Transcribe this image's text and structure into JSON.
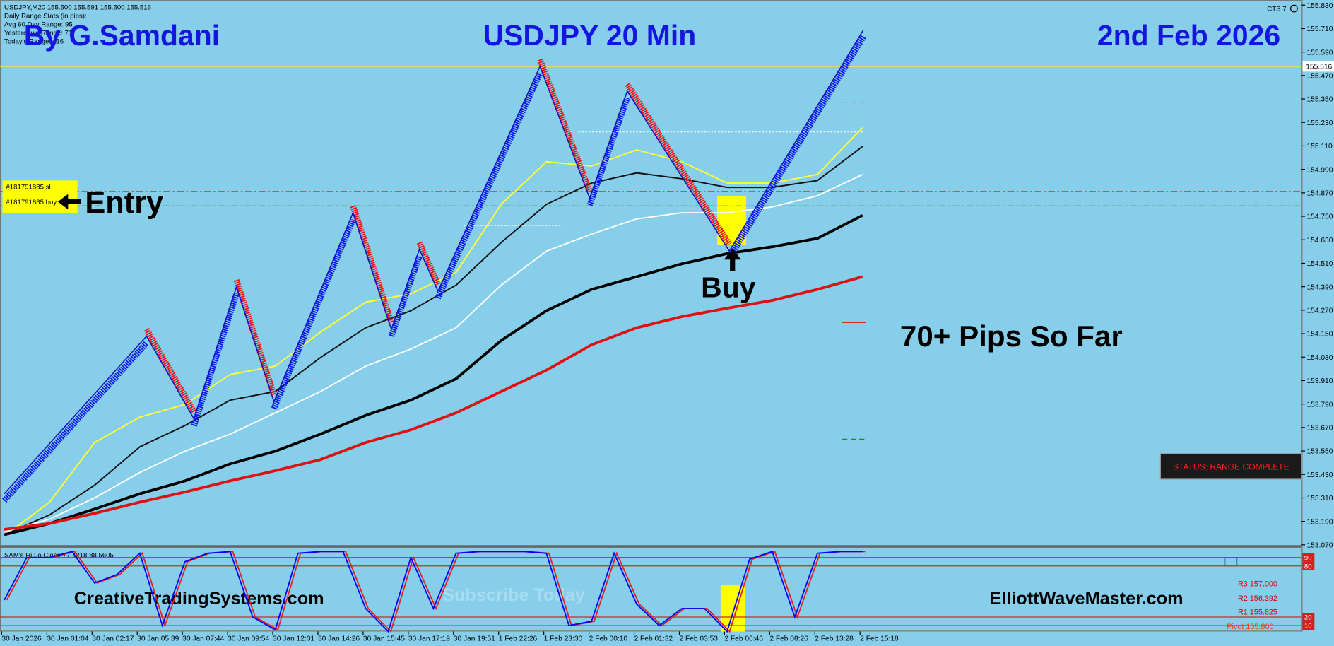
{
  "header": {
    "symbol_info": "USDJPY,M20  155.500 155.591 155.500 155.516",
    "stats": [
      "Daily Range Stats (in pips):",
      "Avg 60 Day Range: 95",
      "Yesterday's Range: 71",
      "Today's Range: 116"
    ],
    "author": "By G.Samdani",
    "title": "USDJPY 20 Min",
    "date": "2nd Feb 2026",
    "version": "CTS 7"
  },
  "annotations": {
    "entry": "Entry",
    "buy": "Buy",
    "pips": "70+ Pips So Far",
    "status": "STATUS: RANGE COMPLETE",
    "site_left": "CreativeTradingSystems.com",
    "subscribe": "Subscribe Today",
    "site_right": "ElliottWaveMaster.com",
    "pivot_labels": [
      "R3 157.000",
      "R2 156.392",
      "R1 155.825",
      "Pivot 155.800"
    ]
  },
  "chart_data": [
    {
      "type": "line",
      "categories": [
        "30 Jan 2026",
        "30 Jan 01:04",
        "30 Jan 02:17",
        "30 Jan 05:39",
        "30 Jan 07:44",
        "30 Jan 09:54",
        "30 Jan 12:01",
        "30 Jan 14:26",
        "30 Jan 15:45",
        "30 Jan 17:19",
        "30 Jan 19:51",
        "1 Feb 22:26",
        "1 Feb 23:30",
        "2 Feb 00:10",
        "2 Feb 01:32",
        "2 Feb 03:53",
        "2 Feb 06:46",
        "2 Feb 08:26",
        "2 Feb 13:28",
        "2 Feb 15:18"
      ],
      "ylim": [
        153.062,
        155.856
      ],
      "yticks": [
        {
          "value": 155.83,
          "label": "155.830"
        },
        {
          "value": 155.71,
          "label": "155.710"
        },
        {
          "value": 155.59,
          "label": "155.590"
        },
        {
          "value": 155.47,
          "label": "155.470"
        },
        {
          "value": 155.35,
          "label": "155.350"
        },
        {
          "value": 155.23,
          "label": "155.230"
        },
        {
          "value": 155.11,
          "label": "155.110"
        },
        {
          "value": 154.99,
          "label": "154.990"
        },
        {
          "value": 154.87,
          "label": "154.870"
        },
        {
          "value": 154.75,
          "label": "154.750"
        },
        {
          "value": 154.63,
          "label": "154.630"
        },
        {
          "value": 154.51,
          "label": "154.510"
        },
        {
          "value": 154.39,
          "label": "154.390"
        },
        {
          "value": 154.27,
          "label": "154.270"
        },
        {
          "value": 154.15,
          "label": "154.150"
        },
        {
          "value": 154.03,
          "label": "154.030"
        },
        {
          "value": 153.91,
          "label": "153.910"
        },
        {
          "value": 153.79,
          "label": "153.790"
        },
        {
          "value": 153.67,
          "label": "153.670"
        },
        {
          "value": 153.55,
          "label": "153.550"
        },
        {
          "value": 153.43,
          "label": "153.430"
        },
        {
          "value": 153.31,
          "label": "153.310"
        },
        {
          "value": 153.19,
          "label": "153.190"
        },
        {
          "value": 153.07,
          "label": "153.070"
        }
      ],
      "current_price": {
        "value": 155.516,
        "label": "155.516"
      },
      "series": [
        {
          "color": "#ffff33",
          "values": [
            153.114,
            153.288,
            153.593,
            153.723,
            153.788,
            153.941,
            153.984,
            154.158,
            154.311,
            154.354,
            154.463,
            154.811,
            155.029,
            155.007,
            155.09,
            155.029,
            154.92,
            154.92,
            154.964,
            155.203
          ]
        },
        {
          "color": "#111111",
          "values": [
            153.122,
            153.223,
            153.375,
            153.571,
            153.68,
            153.81,
            153.854,
            154.028,
            154.18,
            154.267,
            154.398,
            154.616,
            154.811,
            154.92,
            154.972,
            154.942,
            154.898,
            154.898,
            154.933,
            155.107
          ]
        },
        {
          "color": "#ffffff",
          "values": [
            153.136,
            153.201,
            153.31,
            153.44,
            153.549,
            153.636,
            153.745,
            153.854,
            153.984,
            154.071,
            154.18,
            154.398,
            154.572,
            154.659,
            154.737,
            154.768,
            154.768,
            154.798,
            154.855,
            154.964
          ]
        },
        {
          "color": "#000000",
          "values": [
            153.122,
            153.179,
            153.253,
            153.331,
            153.397,
            153.484,
            153.549,
            153.636,
            153.732,
            153.81,
            153.919,
            154.115,
            154.267,
            154.376,
            154.441,
            154.507,
            154.559,
            154.594,
            154.637,
            154.755
          ]
        },
        {
          "color": "#e01010",
          "values": [
            153.149,
            153.179,
            153.231,
            153.288,
            153.34,
            153.397,
            153.449,
            153.506,
            153.593,
            153.658,
            153.745,
            153.854,
            153.963,
            154.093,
            154.18,
            154.237,
            154.28,
            154.32,
            154.376,
            154.441
          ]
        }
      ],
      "zigzag": {
        "color": "#1010c0",
        "x": [
          0,
          3.15,
          4.2,
          5.14,
          5.97,
          7.72,
          8.57,
          9.19,
          9.6,
          11.86,
          12.96,
          13.79,
          16.05,
          19.02
        ],
        "values": [
          153.331,
          154.137,
          153.714,
          154.389,
          153.802,
          154.768,
          154.172,
          154.581,
          154.367,
          155.517,
          154.842,
          155.39,
          154.572,
          155.704
        ]
      },
      "orders": [
        {
          "label": "#181791885 sl",
          "value": 154.877,
          "color": "#cc3333"
        },
        {
          "label": "#181791885 buy",
          "value": 154.803,
          "color": "#228b22"
        }
      ]
    },
    {
      "type": "line",
      "title": "SAM's Hi.Lo.Close 77.4218 88.5605",
      "ylim": [
        0,
        100
      ],
      "levels": [
        90,
        80,
        20,
        10
      ],
      "color": "#0000ff",
      "x": [
        0,
        0.5,
        1,
        1.5,
        2,
        2.5,
        3,
        3.5,
        4,
        4.5,
        5,
        5.5,
        6,
        6.5,
        7,
        7.5,
        8,
        8.5,
        9,
        9.5,
        10,
        10.5,
        11,
        11.5,
        12,
        12.5,
        13,
        13.5,
        14,
        14.5,
        15,
        15.5,
        16,
        16.5,
        17,
        17.5,
        18,
        18.5,
        19
      ],
      "values": [
        40,
        90,
        90,
        97,
        60,
        70,
        95,
        10,
        85,
        95,
        97,
        20,
        5,
        95,
        97,
        97,
        30,
        3,
        90,
        30,
        95,
        97,
        97,
        97,
        95,
        10,
        15,
        95,
        35,
        10,
        30,
        30,
        3,
        88,
        97,
        20,
        95,
        97,
        97
      ]
    }
  ]
}
